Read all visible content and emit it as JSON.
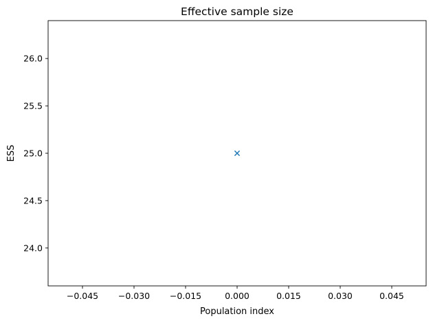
{
  "chart_data": {
    "type": "scatter",
    "title": "Effective sample size",
    "xlabel": "Population index",
    "ylabel": "ESS",
    "xlim": [
      -0.055,
      0.055
    ],
    "ylim": [
      23.6,
      26.4
    ],
    "xticks": [
      -0.045,
      -0.03,
      -0.015,
      0.0,
      0.015,
      0.03,
      0.045
    ],
    "xtick_labels": [
      "−0.045",
      "−0.030",
      "−0.015",
      "0.000",
      "0.015",
      "0.030",
      "0.045"
    ],
    "yticks": [
      24.0,
      24.5,
      25.0,
      25.5,
      26.0
    ],
    "ytick_labels": [
      "24.0",
      "24.5",
      "25.0",
      "25.5",
      "26.0"
    ],
    "grid": false,
    "marker": "x",
    "series": [
      {
        "x": [
          0
        ],
        "y": [
          25
        ],
        "color": "#1f77b4"
      }
    ]
  }
}
